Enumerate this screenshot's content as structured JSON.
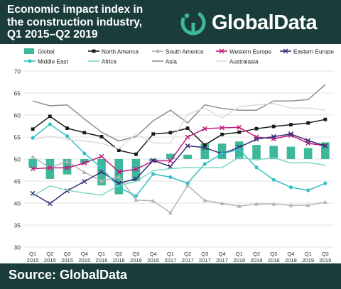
{
  "header": {
    "title": "Economic impact index in\nthe construction industry,\nQ1 2015–Q2 2019",
    "logo_text": "GlobalData",
    "background": "#1a3d3b",
    "logo_icon": "globaldata-logo-icon"
  },
  "footer": {
    "source": "Source: GlobalData"
  },
  "chart_data": {
    "type": "line",
    "categories": [
      "Q1 2015",
      "Q2 2015",
      "Q3 2015",
      "Q4 2015",
      "Q1 2016",
      "Q2 2016",
      "Q3 2016",
      "Q4 2016",
      "Q1 2017",
      "Q2 2017",
      "Q3 2017",
      "Q4 2017",
      "Q1 2018",
      "Q2 2018",
      "Q3 2018",
      "Q4 2018",
      "Q1 2019",
      "Q2 2019"
    ],
    "category_lines": [
      [
        "Q1",
        "2015"
      ],
      [
        "Q2",
        "2015"
      ],
      [
        "Q3",
        "2015"
      ],
      [
        "Q4",
        "2015"
      ],
      [
        "Q1",
        "2016"
      ],
      [
        "Q2",
        "2016"
      ],
      [
        "Q3",
        "2016"
      ],
      [
        "Q4",
        "2016"
      ],
      [
        "Q1",
        "2017"
      ],
      [
        "Q2",
        "2017"
      ],
      [
        "Q3",
        "2017"
      ],
      [
        "Q4",
        "2017"
      ],
      [
        "Q1",
        "2018"
      ],
      [
        "Q2",
        "2018"
      ],
      [
        "Q3",
        "2018"
      ],
      [
        "Q4",
        "2018"
      ],
      [
        "Q1",
        "2019"
      ],
      [
        "Q2",
        "2019"
      ]
    ],
    "ylim": [
      30,
      70
    ],
    "yticks": [
      "30",
      "35",
      "40",
      "45",
      "50",
      "55",
      "60",
      "65",
      "70"
    ],
    "baseline": 50,
    "grid": true,
    "legend_position": "top",
    "series": [
      {
        "name": "Global",
        "kind": "bar",
        "color": "#3db89a",
        "values": [
          48,
          45.5,
          46.5,
          49,
          44,
          42,
          45,
          49.5,
          51.2,
          51,
          53.5,
          53.5,
          54,
          53.2,
          53,
          52.8,
          52.5,
          53.8
        ]
      },
      {
        "name": "North America",
        "kind": "line",
        "color": "#1a1a1a",
        "marker": "square",
        "values": [
          56.8,
          59.7,
          57,
          56,
          55.1,
          52,
          51.1,
          55.7,
          56,
          57,
          53.2,
          55.6,
          56.1,
          56.9,
          57.4,
          57.8,
          58.2,
          59
        ]
      },
      {
        "name": "South America",
        "kind": "line",
        "color": "#b3b3b3",
        "marker": "triangle",
        "values": [
          50.5,
          48,
          49.5,
          47,
          45,
          46,
          40.7,
          40.5,
          37.8,
          44,
          40.6,
          39.9,
          39.3,
          39.8,
          39.8,
          39.5,
          39.5,
          40.2
        ]
      },
      {
        "name": "Western Europe",
        "kind": "line",
        "color": "#c0187c",
        "marker": "x",
        "values": [
          47.8,
          48,
          48,
          49.1,
          50.6,
          47.1,
          47.7,
          49.6,
          49.6,
          55,
          56.9,
          57.1,
          57.2,
          55,
          54.6,
          55.4,
          53.6,
          53
        ]
      },
      {
        "name": "Eastern Europe",
        "kind": "line",
        "color": "#3a2d73",
        "marker": "x",
        "values": [
          42.2,
          39.9,
          42.8,
          44.9,
          47.1,
          44.5,
          45.5,
          49.7,
          48.3,
          53,
          52.6,
          51.2,
          52.7,
          54.5,
          55.1,
          55.7,
          54.2,
          53
        ]
      },
      {
        "name": "Middle East",
        "kind": "line",
        "color": "#35c0c8",
        "marker": "circle",
        "values": [
          54.8,
          57.9,
          55.2,
          51.3,
          48,
          43.6,
          41.6,
          46.6,
          45.9,
          44.5,
          48.9,
          51.2,
          52.2,
          48.1,
          45.3,
          43.6,
          42.9,
          44.5
        ]
      },
      {
        "name": "Africa",
        "kind": "line",
        "color": "#7fd8c4",
        "marker": "none",
        "values": [
          41.6,
          43.9,
          42.9,
          42.3,
          41.8,
          44,
          44.9,
          47.4,
          47.8,
          48.1,
          48,
          48.1,
          50.4,
          49.8,
          50.3,
          49.1,
          49.2,
          48.6
        ]
      },
      {
        "name": "Asia",
        "kind": "line",
        "color": "#8e8e8e",
        "marker": "none",
        "values": [
          63.2,
          62.1,
          62.3,
          59.1,
          56.1,
          54.1,
          55.1,
          58.7,
          61.1,
          58.2,
          62.3,
          61.5,
          61.1,
          61.1,
          63.2,
          63.2,
          63.5,
          66.9
        ]
      },
      {
        "name": "Australasia",
        "kind": "line",
        "color": "#dcdcdc",
        "marker": "none",
        "values": [
          54.4,
          55.2,
          54.4,
          54.1,
          53.6,
          52.3,
          55.7,
          53.7,
          53.6,
          60.2,
          61.6,
          59.3,
          61.9,
          62.3,
          62.6,
          61.6,
          61.6,
          61.1
        ]
      }
    ]
  }
}
